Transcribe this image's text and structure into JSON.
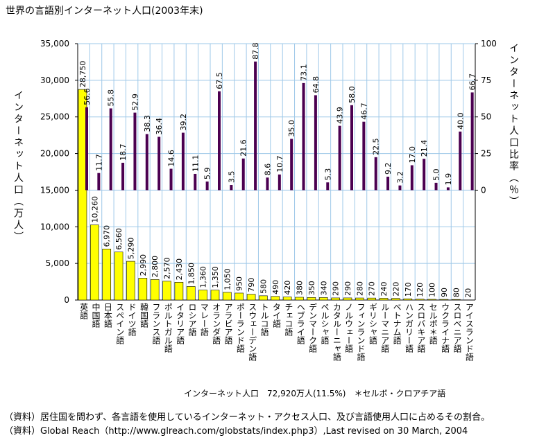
{
  "chart_data": {
    "type": "bar",
    "title": "世界の言語別インターネット人口(2003年末)",
    "y_label": "インターネット人口（万人）",
    "y2_label": "インターネット人口比率（％）",
    "note": "インターネット人口　72,920万人(11.5%)　＊セルボ・クロアチア語",
    "sources": [
      "（資料）居住国を問わず、各言語を使用しているインターネット・アクセス人口、及び言語使用人口に占めるその割合。",
      "（資料）Global Reach（http://www.glreach.com/globstats/index.php3）,Last revised on 30 March, 2004"
    ],
    "categories": [
      "英語",
      "中国語",
      "日本語",
      "スペイン語",
      "ドイツ語",
      "韓国語",
      "フランス語",
      "ポルトガル語",
      "イタリア語",
      "ロシア語",
      "マレー語",
      "オランダ語",
      "アラビア語",
      "ポーランド語",
      "スウェーデン語",
      "トルコ語",
      "タイ語",
      "チェコ語",
      "ヘブライ語",
      "デンマーク語",
      "ペルシャ語",
      "カタルーニャ語",
      "ノルウェー語",
      "フィンランド語",
      "ギリシャ語",
      "ルーマニア語",
      "ベトナム語",
      "ハンガリー語",
      "スロバキア語",
      "セルボ＊語",
      "ウクライナ語",
      "スロベニア語",
      "アイスランド語"
    ],
    "series": [
      {
        "color": "#ffff00",
        "values": [
          28750,
          10260,
          6970,
          6560,
          5290,
          2990,
          2800,
          2570,
          2430,
          1850,
          1360,
          1350,
          1050,
          950,
          790,
          580,
          490,
          420,
          380,
          350,
          340,
          290,
          290,
          280,
          270,
          240,
          220,
          170,
          120,
          100,
          90,
          80,
          20
        ],
        "value_labels": [
          "28,750",
          "10,260",
          "6,970",
          "6,560",
          "5,290",
          "2,990",
          "2,800",
          "2,570",
          "2,430",
          "1,850",
          "1,360",
          "1,350",
          "1,050",
          "950",
          "790",
          "580",
          "490",
          "420",
          "380",
          "350",
          "340",
          "290",
          "290",
          "280",
          "270",
          "240",
          "220",
          "170",
          "120",
          "100",
          "90",
          "80",
          "20"
        ]
      },
      {
        "color": "#4b0050",
        "axis": "y2",
        "values": [
          56.6,
          11.7,
          55.8,
          18.7,
          52.9,
          38.3,
          36.4,
          14.6,
          39.2,
          11.1,
          5.9,
          67.5,
          3.5,
          21.6,
          87.8,
          8.6,
          10.7,
          35.0,
          73.1,
          64.8,
          5.3,
          43.9,
          58.0,
          46.7,
          22.5,
          9.2,
          3.2,
          17.0,
          21.4,
          5.0,
          1.9,
          40.0,
          66.7
        ],
        "value_labels": [
          "56.6",
          "11.7",
          "55.8",
          "18.7",
          "52.9",
          "38.3",
          "36.4",
          "14.6",
          "39.2",
          "11.1",
          "5.9",
          "67.5",
          "3.5",
          "21.6",
          "87.8",
          "8.6",
          "10.7",
          "35.0",
          "73.1",
          "64.8",
          "5.3",
          "43.9",
          "58.0",
          "46.7",
          "22.5",
          "9.2",
          "3.2",
          "17.0",
          "21.4",
          "5.0",
          "1.9",
          "40.0",
          "66.7"
        ]
      }
    ],
    "ylim": [
      0,
      35000
    ],
    "yticks": [
      0,
      {
        "value": 5000,
        "label": "5,000"
      },
      {
        "value": 10000,
        "label": "10,000"
      },
      {
        "value": 15000,
        "label": "15,000"
      },
      {
        "value": 20000,
        "label": "20,000"
      },
      {
        "value": 25000,
        "label": "25,000"
      },
      {
        "value": 30000,
        "label": "30,000"
      },
      {
        "value": 35000,
        "label": "35,000"
      }
    ],
    "y2lim": [
      -75,
      100
    ],
    "y2ticks": [
      0,
      25,
      50,
      75,
      100
    ],
    "grid": true
  }
}
